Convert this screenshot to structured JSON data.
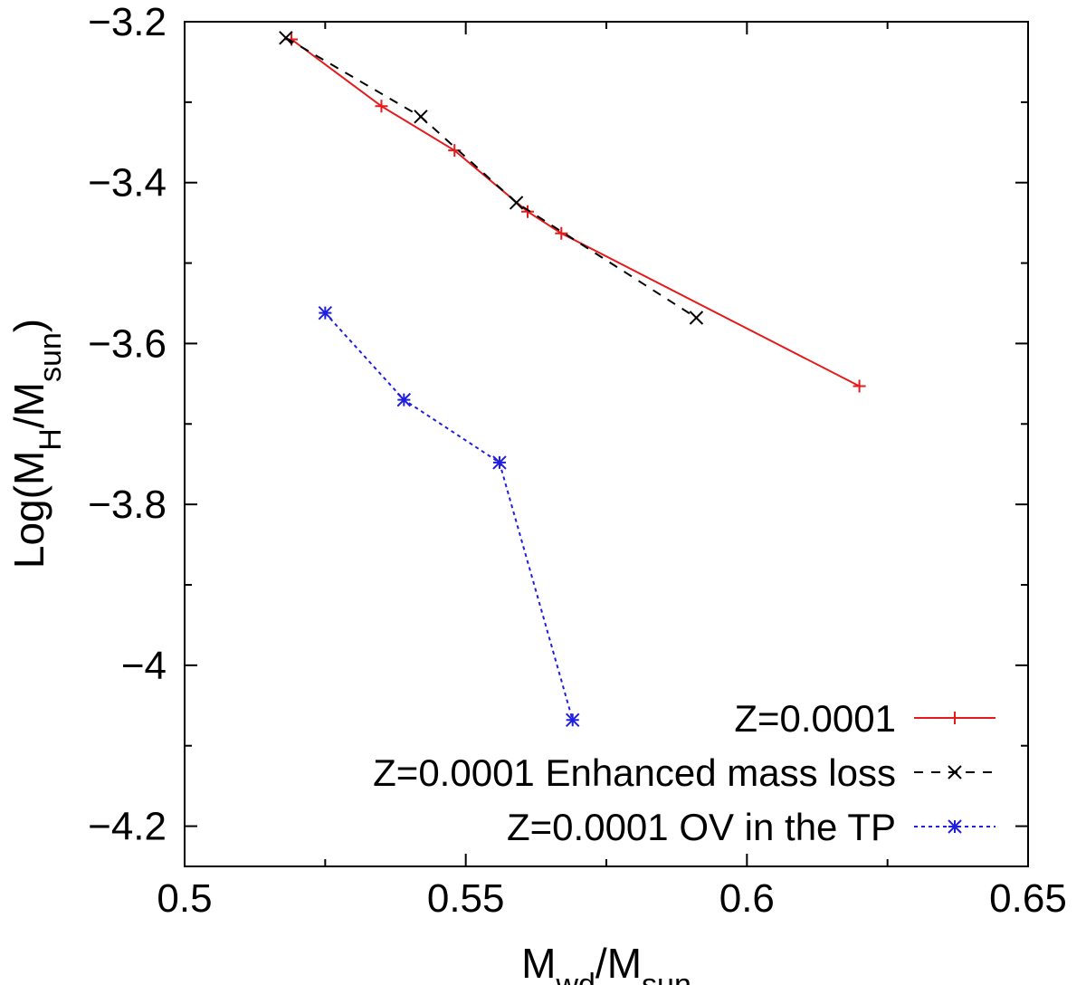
{
  "chart_data": {
    "type": "line",
    "xlabel": {
      "main": "M",
      "sub1": "wd",
      "sep": "/M",
      "sub2": "sun"
    },
    "ylabel": {
      "pre": "Log(M",
      "sub1": "H",
      "sep": "/M",
      "sub2": "sun",
      "post": ")"
    },
    "xlim": [
      0.5,
      0.65
    ],
    "ylim": [
      -4.25,
      -3.2
    ],
    "xticks": [
      0.5,
      0.55,
      0.6,
      0.65
    ],
    "xtick_labels": [
      "0.5",
      "0.55",
      "0.6",
      "0.65"
    ],
    "yticks": [
      -3.2,
      -3.4,
      -3.6,
      -3.8,
      -4.0,
      -4.2
    ],
    "ytick_labels": [
      "−3.2",
      "−3.4",
      "−3.6",
      "−3.8",
      "−4",
      "−4.2"
    ],
    "minor_xticks": [
      0.525,
      0.575,
      0.625
    ],
    "minor_yticks": [
      -3.3,
      -3.5,
      -3.7,
      -3.9,
      -4.1
    ],
    "grid": false,
    "legend_position": "bottom-right",
    "series": [
      {
        "name": "Z=0.0001",
        "color": "#e41a1c",
        "line_style": "solid",
        "marker": "plus",
        "x": [
          0.519,
          0.535,
          0.548,
          0.561,
          0.567,
          0.62
        ],
        "y": [
          -3.222,
          -3.305,
          -3.36,
          -3.436,
          -3.463,
          -3.653
        ]
      },
      {
        "name": "Z=0.0001 Enhanced mass loss",
        "color": "#000000",
        "line_style": "dashed",
        "marker": "cross",
        "x": [
          0.518,
          0.542,
          0.559,
          0.591
        ],
        "y": [
          -3.22,
          -3.318,
          -3.425,
          -3.568
        ]
      },
      {
        "name": "Z=0.0001 OV in the TP",
        "color": "#1f1fdd",
        "line_style": "dotted",
        "marker": "star",
        "x": [
          0.525,
          0.539,
          0.556,
          0.569
        ],
        "y": [
          -3.562,
          -3.67,
          -3.748,
          -4.068
        ]
      }
    ]
  }
}
